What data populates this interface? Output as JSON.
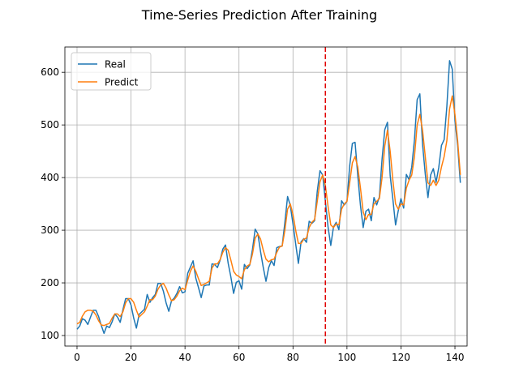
{
  "chart_data": {
    "type": "line",
    "title": "Time-Series Prediction After Training",
    "xlabel": "",
    "ylabel": "",
    "xlim": [
      -4.5,
      144.5
    ],
    "ylim": [
      80,
      648
    ],
    "xticks": [
      0,
      20,
      40,
      60,
      80,
      100,
      120,
      140
    ],
    "yticks": [
      100,
      200,
      300,
      400,
      500,
      600
    ],
    "grid": true,
    "legend": "top-left",
    "vline": {
      "x": 92,
      "color": "#e41a1c",
      "style": "dashed"
    },
    "series": [
      {
        "name": "Real",
        "color": "#1f77b4",
        "values": [
          112,
          118,
          132,
          129,
          121,
          135,
          148,
          148,
          136,
          119,
          104,
          118,
          115,
          126,
          141,
          135,
          125,
          149,
          170,
          170,
          158,
          133,
          114,
          140,
          145,
          150,
          178,
          163,
          172,
          178,
          199,
          199,
          184,
          162,
          146,
          166,
          171,
          180,
          193,
          181,
          183,
          218,
          230,
          242,
          209,
          191,
          172,
          194,
          196,
          196,
          236,
          235,
          229,
          243,
          264,
          272,
          237,
          211,
          180,
          201,
          204,
          188,
          235,
          227,
          234,
          264,
          302,
          293,
          259,
          229,
          203,
          229,
          242,
          233,
          267,
          269,
          270,
          315,
          364,
          347,
          312,
          274,
          237,
          278,
          284,
          277,
          317,
          313,
          318,
          374,
          413,
          405,
          355,
          306,
          271,
          306,
          315,
          301,
          356,
          348,
          355,
          422,
          465,
          467,
          404,
          347,
          305,
          336,
          340,
          318,
          362,
          348,
          363,
          435,
          491,
          505,
          404,
          359,
          310,
          337,
          360,
          342,
          406,
          396,
          420,
          472,
          548,
          559,
          463,
          407,
          362,
          405,
          417,
          391,
          419,
          461,
          472,
          535,
          622,
          606,
          508,
          461,
          390
        ]
      },
      {
        "name": "Predict",
        "color": "#ff7f0e",
        "values": [
          122,
          125,
          137,
          145,
          148,
          148,
          146,
          139,
          128,
          120,
          119,
          121,
          123,
          133,
          141,
          141,
          136,
          145,
          162,
          170,
          170,
          163,
          148,
          135,
          140,
          145,
          156,
          168,
          168,
          175,
          188,
          196,
          199,
          190,
          177,
          166,
          168,
          175,
          185,
          190,
          187,
          205,
          222,
          232,
          222,
          208,
          195,
          197,
          200,
          203,
          228,
          236,
          236,
          244,
          258,
          267,
          262,
          243,
          222,
          215,
          212,
          208,
          225,
          232,
          235,
          255,
          285,
          293,
          283,
          262,
          245,
          240,
          244,
          245,
          258,
          268,
          270,
          300,
          340,
          350,
          330,
          300,
          275,
          275,
          283,
          285,
          305,
          315,
          320,
          355,
          392,
          405,
          385,
          345,
          310,
          305,
          312,
          310,
          340,
          350,
          355,
          390,
          428,
          440,
          420,
          380,
          335,
          320,
          330,
          330,
          350,
          355,
          360,
          400,
          460,
          490,
          450,
          395,
          350,
          340,
          350,
          348,
          380,
          395,
          405,
          440,
          500,
          520,
          490,
          440,
          390,
          385,
          395,
          385,
          395,
          420,
          440,
          470,
          530,
          555,
          520,
          470,
          405
        ]
      }
    ]
  }
}
